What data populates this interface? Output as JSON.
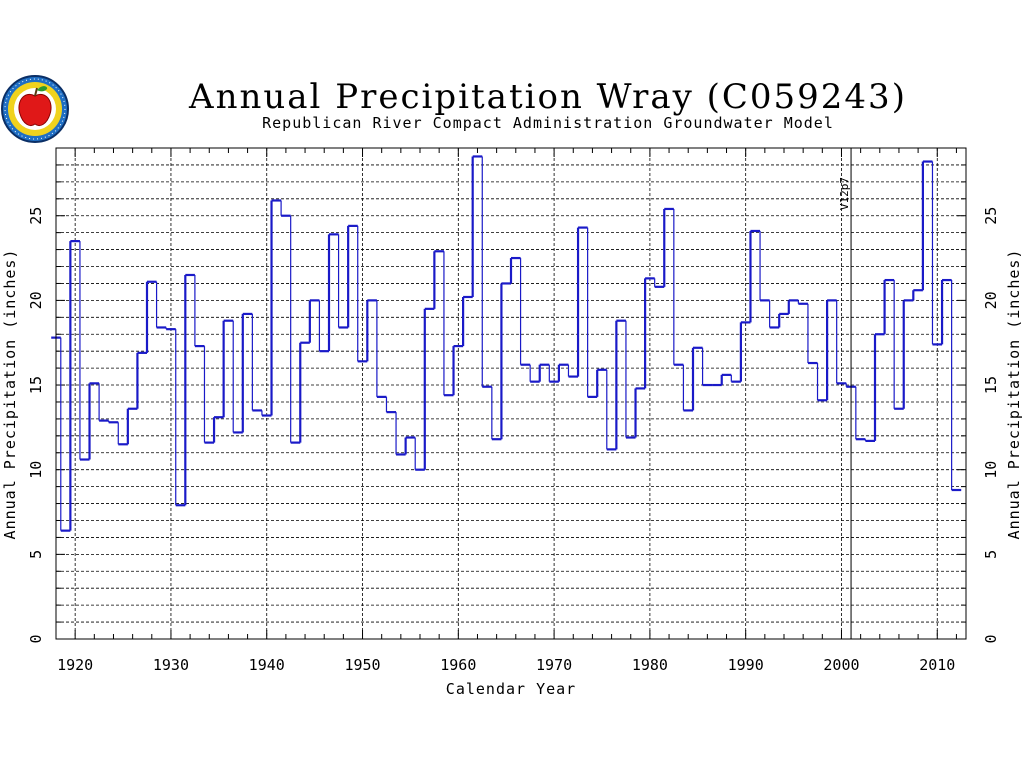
{
  "chart_data": {
    "type": "line",
    "style": "step",
    "title": "Annual Precipitation Wray (C059243)",
    "subtitle": "Republican River Compact Administration Groundwater Model",
    "xlabel": "Calendar Year",
    "ylabel": "Annual Precipitation (inches)",
    "ylabel_right": "Annual Precipitation (inches)",
    "xlim": [
      1918,
      2013
    ],
    "ylim": [
      0,
      29
    ],
    "x_ticks": [
      "1920",
      "1930",
      "1940",
      "1950",
      "1960",
      "1970",
      "1980",
      "1990",
      "2000",
      "2010"
    ],
    "y_ticks": [
      "0",
      "5",
      "10",
      "15",
      "20",
      "25"
    ],
    "grid": true,
    "annotation": {
      "text": "V12p7",
      "x": 2001
    },
    "series_color": "#1a1ac8",
    "years": [
      1918,
      1919,
      1920,
      1921,
      1922,
      1923,
      1924,
      1925,
      1926,
      1927,
      1928,
      1929,
      1930,
      1931,
      1932,
      1933,
      1934,
      1935,
      1936,
      1937,
      1938,
      1939,
      1940,
      1941,
      1942,
      1943,
      1944,
      1945,
      1946,
      1947,
      1948,
      1949,
      1950,
      1951,
      1952,
      1953,
      1954,
      1955,
      1956,
      1957,
      1958,
      1959,
      1960,
      1961,
      1962,
      1963,
      1964,
      1965,
      1966,
      1967,
      1968,
      1969,
      1970,
      1971,
      1972,
      1973,
      1974,
      1975,
      1976,
      1977,
      1978,
      1979,
      1980,
      1981,
      1982,
      1983,
      1984,
      1985,
      1986,
      1987,
      1988,
      1989,
      1990,
      1991,
      1992,
      1993,
      1994,
      1995,
      1996,
      1997,
      1998,
      1999,
      2000,
      2001,
      2002,
      2003,
      2004,
      2005,
      2006,
      2007,
      2008,
      2009,
      2010,
      2011,
      2012
    ],
    "values": [
      17.8,
      6.4,
      23.5,
      10.6,
      15.1,
      12.9,
      12.8,
      11.5,
      13.6,
      16.9,
      21.1,
      18.4,
      18.3,
      7.9,
      21.5,
      17.3,
      11.6,
      13.1,
      18.8,
      12.2,
      19.2,
      13.5,
      13.2,
      25.9,
      25.0,
      11.6,
      17.5,
      20.0,
      17.0,
      23.9,
      18.4,
      24.4,
      16.4,
      20.0,
      14.3,
      13.4,
      10.9,
      11.9,
      10.0,
      19.5,
      22.9,
      14.4,
      17.3,
      20.2,
      28.5,
      14.9,
      11.8,
      21.0,
      22.5,
      16.2,
      15.2,
      16.2,
      15.2,
      16.2,
      15.5,
      24.3,
      14.3,
      15.9,
      11.2,
      18.8,
      11.9,
      14.8,
      21.3,
      20.8,
      25.4,
      16.2,
      13.5,
      17.2,
      15.0,
      15.0,
      15.6,
      15.2,
      18.7,
      24.1,
      20.0,
      18.4,
      19.2,
      20.0,
      19.8,
      16.3,
      14.1,
      20.0,
      15.1,
      14.9,
      11.8,
      11.7,
      18.0,
      21.2,
      13.6,
      20.0,
      20.6,
      28.2,
      17.4,
      21.2,
      8.8
    ]
  }
}
